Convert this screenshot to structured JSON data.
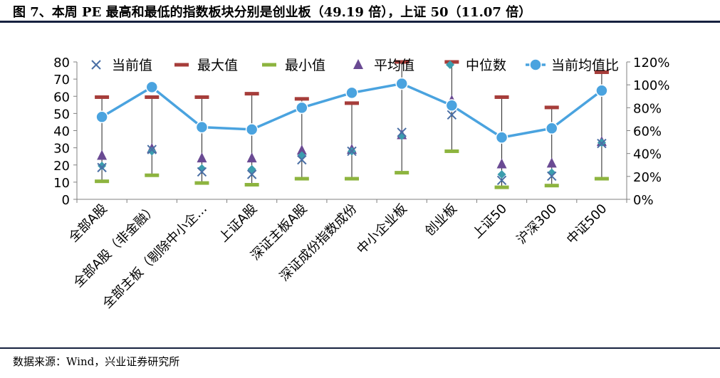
{
  "header": {
    "title": "图 7、本周 PE 最高和最低的指数板块分别是创业板（49.19 倍），上证 50（11.07 倍）"
  },
  "footer": {
    "source": "数据来源：Wind，兴业证券研究所"
  },
  "chart_data": {
    "type": "line",
    "categories": [
      "全部A股",
      "全部A股（非金融）",
      "全部主板（剔除中小企…",
      "上证A股",
      "深证主板A股",
      "深证成份指数成份",
      "中小企业板",
      "创业板",
      "上证50",
      "沪深300",
      "中证500"
    ],
    "left_axis": {
      "ylim": [
        0,
        80
      ],
      "ticks": [
        "0",
        "10",
        "20",
        "30",
        "40",
        "50",
        "60",
        "70",
        "80"
      ]
    },
    "right_axis": {
      "ylim": [
        0,
        1.2
      ],
      "ticks": [
        "0%",
        "20%",
        "40%",
        "60%",
        "80%",
        "100%",
        "120%"
      ]
    },
    "legend_position": "top",
    "series": [
      {
        "name": "当前值",
        "marker": "x",
        "axis": "left",
        "color": "#4a6fa5",
        "values": [
          18.5,
          29.0,
          16.0,
          14.5,
          23.0,
          28.0,
          39.0,
          49.19,
          11.07,
          13.5,
          32.5
        ]
      },
      {
        "name": "最大值",
        "marker": "dash",
        "axis": "left",
        "color": "#a63d3a",
        "values": [
          59.5,
          59.5,
          59.5,
          61.5,
          58.5,
          56.0,
          80.0,
          80.0,
          59.5,
          53.5,
          74.0
        ]
      },
      {
        "name": "最小值",
        "marker": "dash",
        "axis": "left",
        "color": "#8db43f",
        "values": [
          10.5,
          14.0,
          9.5,
          8.5,
          12.0,
          12.0,
          15.5,
          28.0,
          7.0,
          8.0,
          12.0
        ]
      },
      {
        "name": "平均值",
        "marker": "triangle",
        "axis": "left",
        "color": "#6a4a93",
        "values": [
          25.5,
          29.5,
          24.0,
          24.0,
          28.5,
          29.0,
          37.5,
          57.5,
          20.5,
          21.0,
          33.5
        ]
      },
      {
        "name": "中位数",
        "marker": "diamond",
        "axis": "left",
        "color": "#3b9dae",
        "values": [
          19.5,
          28.0,
          18.0,
          17.5,
          25.5,
          28.0,
          37.0,
          56.0,
          14.5,
          15.5,
          33.0
        ]
      },
      {
        "name": "当前均值比",
        "marker": "circle-line",
        "axis": "right",
        "color": "#4aa3df",
        "values": [
          0.72,
          0.98,
          0.63,
          0.61,
          0.8,
          0.93,
          1.01,
          0.82,
          0.54,
          0.62,
          0.95
        ]
      }
    ]
  }
}
